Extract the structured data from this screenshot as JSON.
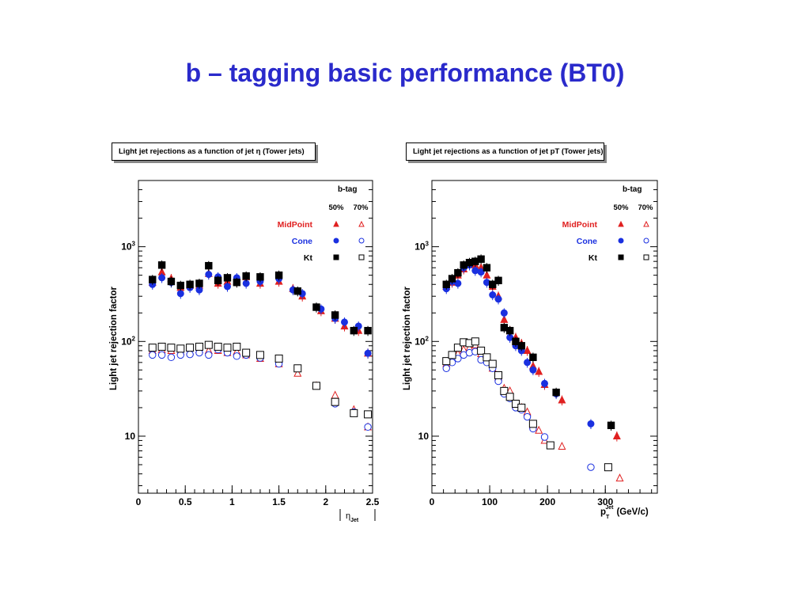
{
  "title": "b – tagging basic performance (BT0)",
  "colors": {
    "title": "#2a2acb",
    "midpoint": "#e02020",
    "cone": "#1a30e0",
    "kt": "#000000"
  },
  "chart_data": [
    {
      "type": "scatter",
      "title": "Light jet rejections as a function of jet η (Tower jets)",
      "xlabel": "|η_Jet|",
      "ylabel": "Light jet rejection factor",
      "xlim": [
        0,
        2.5
      ],
      "ylim": [
        2.5,
        5000
      ],
      "yscale": "log",
      "x_ticks": [
        "0",
        "0.5",
        "1",
        "1.5",
        "2",
        "2.5"
      ],
      "y_ticks": [
        "10",
        "10²",
        "10³"
      ],
      "legend": {
        "header": "b-tag",
        "columns": [
          "50%",
          "70%"
        ],
        "position": "top-right",
        "entries": [
          "MidPoint",
          "Cone",
          "Kt"
        ]
      },
      "series": [
        {
          "name": "MidPoint",
          "efficiency": "50%",
          "x": [
            0.15,
            0.25,
            0.35,
            0.45,
            0.55,
            0.65,
            0.75,
            0.85,
            0.95,
            1.05,
            1.15,
            1.3,
            1.5,
            1.65,
            1.75,
            1.95,
            2.1,
            2.2,
            2.35,
            2.45
          ],
          "y": [
            420,
            540,
            460,
            370,
            390,
            390,
            520,
            410,
            430,
            430,
            480,
            410,
            430,
            360,
            300,
            210,
            175,
            145,
            130,
            75
          ]
        },
        {
          "name": "Cone",
          "efficiency": "50%",
          "x": [
            0.15,
            0.25,
            0.35,
            0.45,
            0.55,
            0.65,
            0.75,
            0.85,
            0.95,
            1.05,
            1.15,
            1.3,
            1.5,
            1.65,
            1.75,
            1.95,
            2.1,
            2.2,
            2.35,
            2.45
          ],
          "y": [
            400,
            470,
            420,
            320,
            370,
            350,
            510,
            480,
            380,
            470,
            410,
            430,
            460,
            350,
            320,
            220,
            175,
            160,
            145,
            75
          ]
        },
        {
          "name": "Kt",
          "efficiency": "50%",
          "x": [
            0.15,
            0.25,
            0.35,
            0.45,
            0.55,
            0.65,
            0.75,
            0.85,
            0.95,
            1.05,
            1.15,
            1.3,
            1.5,
            1.7,
            1.9,
            2.1,
            2.3,
            2.45
          ],
          "y": [
            450,
            640,
            430,
            390,
            400,
            410,
            630,
            440,
            470,
            420,
            490,
            480,
            500,
            340,
            230,
            190,
            130,
            130
          ]
        },
        {
          "name": "MidPoint",
          "efficiency": "70%",
          "x": [
            0.15,
            0.25,
            0.35,
            0.45,
            0.55,
            0.65,
            0.75,
            0.85,
            0.95,
            1.05,
            1.15,
            1.3,
            1.5,
            1.7,
            1.9,
            2.1,
            2.3,
            2.45
          ],
          "y": [
            80,
            82,
            80,
            78,
            78,
            82,
            80,
            80,
            76,
            78,
            72,
            66,
            58,
            46,
            34,
            27,
            19,
            12.5
          ]
        },
        {
          "name": "Cone",
          "efficiency": "70%",
          "x": [
            0.15,
            0.25,
            0.35,
            0.45,
            0.55,
            0.65,
            0.75,
            0.85,
            0.95,
            1.05,
            1.15,
            1.3,
            1.5,
            1.7,
            1.9,
            2.1,
            2.3,
            2.45
          ],
          "y": [
            72,
            72,
            68,
            72,
            73,
            76,
            72,
            82,
            76,
            70,
            72,
            67,
            58,
            52,
            34,
            22,
            18,
            12.5
          ]
        },
        {
          "name": "Kt",
          "efficiency": "70%",
          "x": [
            0.15,
            0.25,
            0.35,
            0.45,
            0.55,
            0.65,
            0.75,
            0.85,
            0.95,
            1.05,
            1.15,
            1.3,
            1.5,
            1.7,
            1.9,
            2.1,
            2.3,
            2.45
          ],
          "y": [
            86,
            88,
            86,
            84,
            86,
            88,
            92,
            88,
            86,
            88,
            76,
            72,
            66,
            52,
            34,
            23,
            17.5,
            17
          ]
        }
      ]
    },
    {
      "type": "scatter",
      "title": "Light jet rejections as a function of jet pT (Tower jets)",
      "xlabel": "p_T^Jet (GeV/c)",
      "ylabel": "Light jet rejection factor",
      "xlim": [
        0,
        390
      ],
      "ylim": [
        2.5,
        5000
      ],
      "yscale": "log",
      "x_ticks": [
        "0",
        "100",
        "200",
        "300"
      ],
      "y_ticks": [
        "10",
        "10²",
        "10³"
      ],
      "legend": {
        "header": "b-tag",
        "columns": [
          "50%",
          "70%"
        ],
        "position": "top-right",
        "entries": [
          "MidPoint",
          "Cone",
          "Kt"
        ]
      },
      "series": [
        {
          "name": "MidPoint",
          "efficiency": "50%",
          "x": [
            25,
            35,
            45,
            55,
            65,
            75,
            85,
            95,
            105,
            115,
            125,
            135,
            145,
            155,
            165,
            175,
            185,
            195,
            225,
            320
          ],
          "y": [
            380,
            420,
            500,
            580,
            660,
            640,
            600,
            500,
            380,
            300,
            170,
            130,
            110,
            95,
            80,
            55,
            48,
            35,
            24,
            10
          ]
        },
        {
          "name": "Cone",
          "efficiency": "50%",
          "x": [
            25,
            35,
            45,
            55,
            65,
            75,
            85,
            95,
            105,
            115,
            125,
            135,
            145,
            155,
            165,
            175,
            195,
            215,
            275
          ],
          "y": [
            360,
            430,
            410,
            600,
            640,
            560,
            540,
            420,
            310,
            280,
            200,
            110,
            90,
            80,
            60,
            50,
            36,
            28,
            13.5
          ]
        },
        {
          "name": "Kt",
          "efficiency": "50%",
          "x": [
            25,
            35,
            45,
            55,
            65,
            75,
            85,
            95,
            105,
            115,
            125,
            135,
            145,
            155,
            175,
            215,
            310
          ],
          "y": [
            400,
            460,
            530,
            640,
            680,
            700,
            740,
            600,
            400,
            440,
            140,
            130,
            100,
            90,
            68,
            29,
            13
          ]
        },
        {
          "name": "MidPoint",
          "efficiency": "70%",
          "x": [
            25,
            35,
            45,
            55,
            65,
            75,
            85,
            95,
            105,
            115,
            125,
            135,
            145,
            155,
            165,
            175,
            185,
            195,
            225,
            325
          ],
          "y": [
            58,
            68,
            74,
            82,
            86,
            92,
            74,
            66,
            52,
            42,
            32,
            30,
            21,
            20,
            18,
            13,
            11.5,
            9,
            7.8,
            3.6
          ]
        },
        {
          "name": "Cone",
          "efficiency": "70%",
          "x": [
            25,
            35,
            45,
            55,
            65,
            75,
            85,
            95,
            105,
            115,
            125,
            135,
            145,
            155,
            165,
            175,
            195,
            275
          ],
          "y": [
            52,
            60,
            66,
            72,
            76,
            78,
            64,
            60,
            52,
            38,
            28,
            25,
            20,
            19,
            16,
            12,
            9.8,
            4.7
          ]
        },
        {
          "name": "Kt",
          "efficiency": "70%",
          "x": [
            25,
            35,
            45,
            55,
            65,
            75,
            85,
            95,
            105,
            115,
            125,
            135,
            145,
            155,
            175,
            205,
            305
          ],
          "y": [
            62,
            72,
            86,
            98,
            96,
            100,
            80,
            68,
            58,
            44,
            30,
            26,
            22,
            20,
            13.5,
            8,
            4.7
          ]
        }
      ]
    }
  ]
}
